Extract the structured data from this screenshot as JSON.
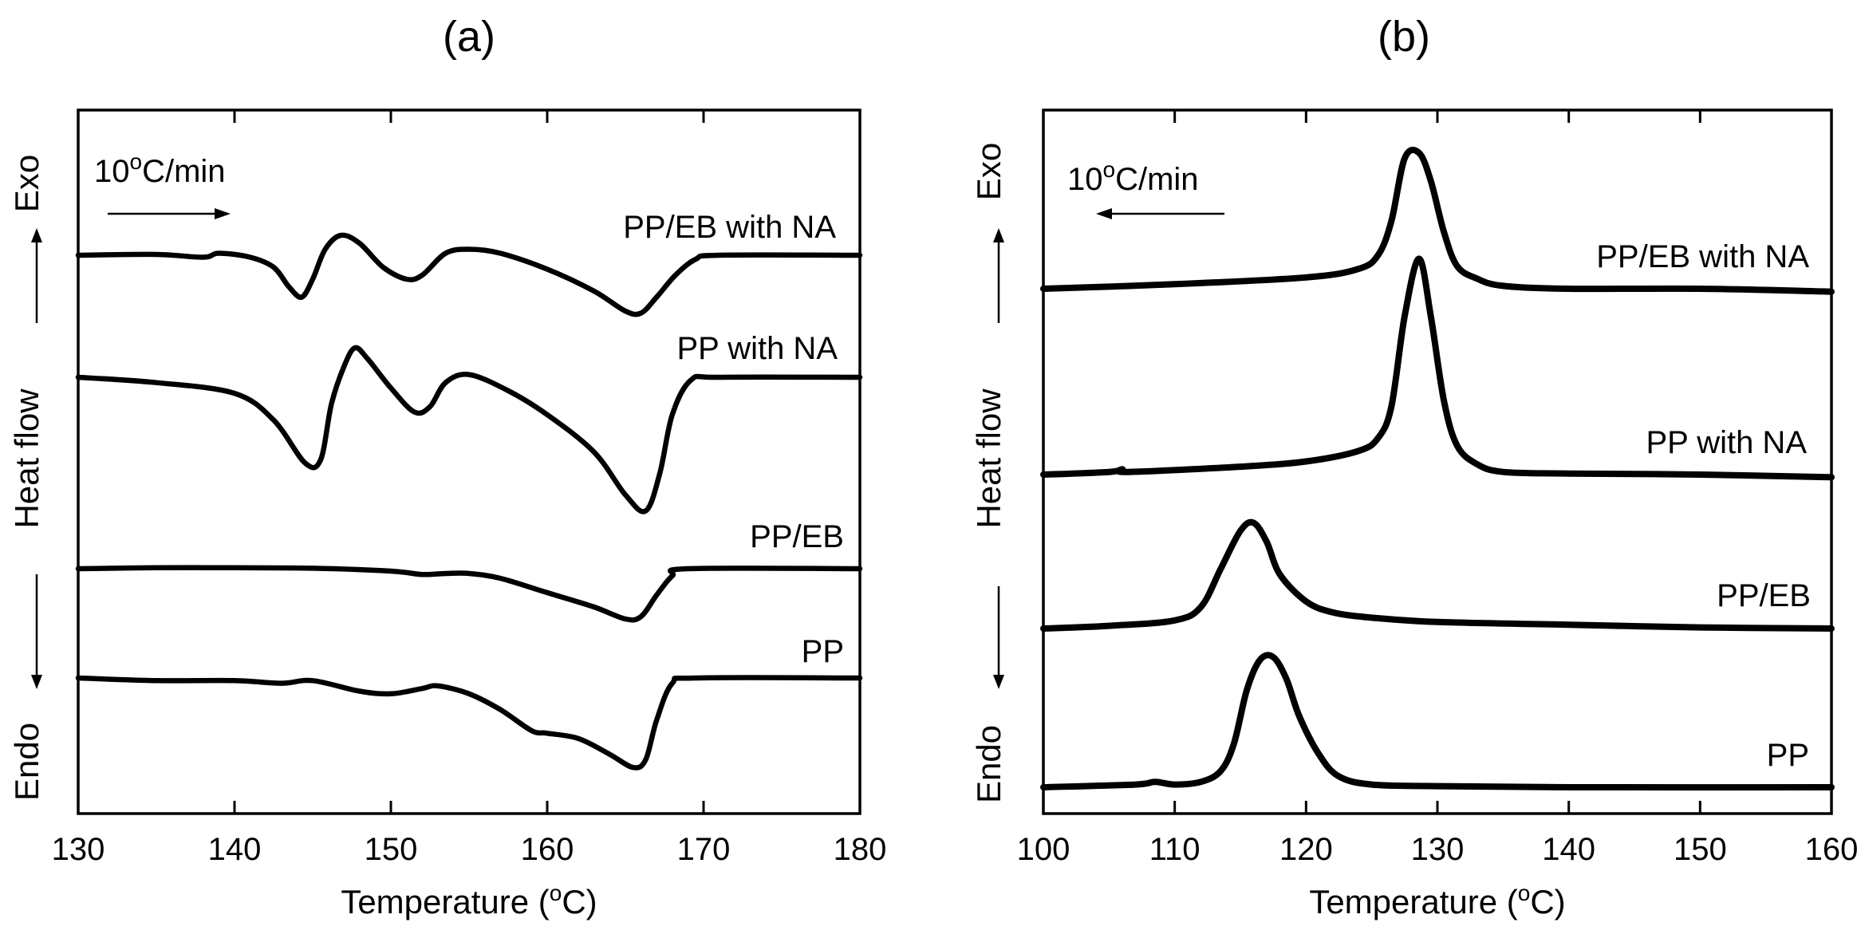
{
  "chart_data": [
    {
      "type": "line",
      "panel_label": "(a)",
      "xlabel": "Temperature (°C)",
      "xlim": [
        130,
        180
      ],
      "xticks": [
        130,
        140,
        150,
        160,
        170,
        180
      ],
      "y_label_top": "Exo",
      "y_label_middle": "Heat flow",
      "y_label_bottom": "Endo",
      "rate_label": "10°C/min",
      "rate_arrow_direction": "right",
      "yticks_shown": false,
      "series": [
        {
          "name": "PP/EB with NA",
          "baseline": 0,
          "points": [
            [
              130,
              0
            ],
            [
              135,
              0.02
            ],
            [
              138,
              -0.05
            ],
            [
              139,
              0.05
            ],
            [
              141,
              -0.05
            ],
            [
              142.5,
              -0.3
            ],
            [
              143.5,
              -0.8
            ],
            [
              144.3,
              -1.05
            ],
            [
              145,
              -0.6
            ],
            [
              145.8,
              0.15
            ],
            [
              146.8,
              0.5
            ],
            [
              148,
              0.3
            ],
            [
              149.5,
              -0.3
            ],
            [
              151,
              -0.6
            ],
            [
              152,
              -0.5
            ],
            [
              153.5,
              0.05
            ],
            [
              155,
              0.15
            ],
            [
              157,
              0.05
            ],
            [
              160,
              -0.35
            ],
            [
              163,
              -0.9
            ],
            [
              165,
              -1.4
            ],
            [
              166,
              -1.45
            ],
            [
              167,
              -1.05
            ],
            [
              168.2,
              -0.5
            ],
            [
              169.5,
              -0.1
            ],
            [
              171,
              0
            ],
            [
              180,
              0
            ]
          ]
        },
        {
          "name": "PP with NA",
          "baseline": 0,
          "points": [
            [
              130,
              0
            ],
            [
              135,
              -0.1
            ],
            [
              140,
              -0.3
            ],
            [
              142.5,
              -0.8
            ],
            [
              144.5,
              -1.6
            ],
            [
              145.5,
              -1.55
            ],
            [
              146.2,
              -0.5
            ],
            [
              147,
              0.2
            ],
            [
              147.7,
              0.55
            ],
            [
              148.5,
              0.35
            ],
            [
              150,
              -0.2
            ],
            [
              151.5,
              -0.65
            ],
            [
              152.5,
              -0.55
            ],
            [
              153.5,
              -0.1
            ],
            [
              155,
              0.05
            ],
            [
              157.5,
              -0.25
            ],
            [
              160,
              -0.7
            ],
            [
              163,
              -1.4
            ],
            [
              165,
              -2.2
            ],
            [
              166.3,
              -2.5
            ],
            [
              167.2,
              -1.8
            ],
            [
              168,
              -0.7
            ],
            [
              169.2,
              -0.05
            ],
            [
              171,
              0
            ],
            [
              180,
              0
            ]
          ]
        },
        {
          "name": "PP/EB",
          "baseline": 0,
          "points": [
            [
              130,
              0
            ],
            [
              135,
              0.02
            ],
            [
              140,
              0.02
            ],
            [
              145,
              0.01
            ],
            [
              150,
              -0.05
            ],
            [
              152,
              -0.12
            ],
            [
              153.5,
              -0.1
            ],
            [
              155,
              -0.1
            ],
            [
              157,
              -0.2
            ],
            [
              160,
              -0.5
            ],
            [
              163,
              -0.8
            ],
            [
              165,
              -1.05
            ],
            [
              166,
              -1.0
            ],
            [
              167,
              -0.55
            ],
            [
              168,
              -0.15
            ],
            [
              169,
              0
            ],
            [
              180,
              0
            ]
          ]
        },
        {
          "name": "PP",
          "baseline": 0,
          "points": [
            [
              130,
              0
            ],
            [
              135,
              -0.05
            ],
            [
              140,
              -0.05
            ],
            [
              143,
              -0.1
            ],
            [
              145,
              -0.05
            ],
            [
              148,
              -0.25
            ],
            [
              150,
              -0.3
            ],
            [
              152,
              -0.2
            ],
            [
              153,
              -0.15
            ],
            [
              155,
              -0.3
            ],
            [
              157,
              -0.6
            ],
            [
              159,
              -1.0
            ],
            [
              160,
              -1.05
            ],
            [
              162,
              -1.15
            ],
            [
              164,
              -1.45
            ],
            [
              165.5,
              -1.7
            ],
            [
              166.3,
              -1.55
            ],
            [
              167,
              -0.8
            ],
            [
              168,
              -0.1
            ],
            [
              169.5,
              0
            ],
            [
              180,
              0
            ]
          ]
        }
      ]
    },
    {
      "type": "line",
      "panel_label": "(b)",
      "xlabel": "Temperature (°C)",
      "xlim": [
        100,
        160
      ],
      "xticks": [
        100,
        110,
        120,
        130,
        140,
        150,
        160
      ],
      "y_label_top": "Exo",
      "y_label_middle": "Heat flow",
      "y_label_bottom": "Endo",
      "rate_label": "10°C/min",
      "rate_arrow_direction": "left",
      "yticks_shown": false,
      "series": [
        {
          "name": "PP/EB with NA",
          "points": [
            [
              100,
              0
            ],
            [
              110,
              0.08
            ],
            [
              120,
              0.2
            ],
            [
              124,
              0.35
            ],
            [
              125.5,
              0.6
            ],
            [
              126.5,
              1.2
            ],
            [
              127.5,
              2.3
            ],
            [
              128.6,
              2.4
            ],
            [
              129.5,
              1.9
            ],
            [
              130.5,
              1.0
            ],
            [
              131.5,
              0.4
            ],
            [
              133,
              0.18
            ],
            [
              135,
              0.05
            ],
            [
              140,
              0
            ],
            [
              150,
              0
            ],
            [
              160,
              -0.05
            ]
          ]
        },
        {
          "name": "PP with NA",
          "points": [
            [
              100,
              0
            ],
            [
              105,
              0.05
            ],
            [
              106,
              0.1
            ],
            [
              106.5,
              0.05
            ],
            [
              115,
              0.15
            ],
            [
              120,
              0.25
            ],
            [
              124,
              0.45
            ],
            [
              125.5,
              0.7
            ],
            [
              126.5,
              1.3
            ],
            [
              127.5,
              3.0
            ],
            [
              128.6,
              4.1
            ],
            [
              129.5,
              3.0
            ],
            [
              130.5,
              1.4
            ],
            [
              131.5,
              0.55
            ],
            [
              133,
              0.2
            ],
            [
              135,
              0.05
            ],
            [
              140,
              0.02
            ],
            [
              150,
              0
            ],
            [
              160,
              -0.05
            ]
          ]
        },
        {
          "name": "PP/EB",
          "points": [
            [
              100,
              0
            ],
            [
              105,
              0.05
            ],
            [
              110,
              0.15
            ],
            [
              112,
              0.4
            ],
            [
              113.5,
              1.1
            ],
            [
              115,
              1.8
            ],
            [
              116,
              1.95
            ],
            [
              117,
              1.6
            ],
            [
              118,
              1.0
            ],
            [
              120,
              0.5
            ],
            [
              122,
              0.3
            ],
            [
              125,
              0.2
            ],
            [
              130,
              0.12
            ],
            [
              140,
              0.07
            ],
            [
              150,
              0.02
            ],
            [
              160,
              0
            ]
          ]
        },
        {
          "name": "PP",
          "points": [
            [
              100,
              0
            ],
            [
              107,
              0.05
            ],
            [
              108.5,
              0.1
            ],
            [
              110,
              0.05
            ],
            [
              112,
              0.1
            ],
            [
              113.5,
              0.3
            ],
            [
              114.5,
              0.8
            ],
            [
              115.5,
              1.8
            ],
            [
              116.5,
              2.35
            ],
            [
              117.5,
              2.4
            ],
            [
              118.5,
              2.0
            ],
            [
              119.5,
              1.3
            ],
            [
              121,
              0.6
            ],
            [
              122.5,
              0.2
            ],
            [
              125,
              0.05
            ],
            [
              130,
              0.02
            ],
            [
              140,
              0
            ],
            [
              160,
              0
            ]
          ]
        }
      ]
    }
  ]
}
